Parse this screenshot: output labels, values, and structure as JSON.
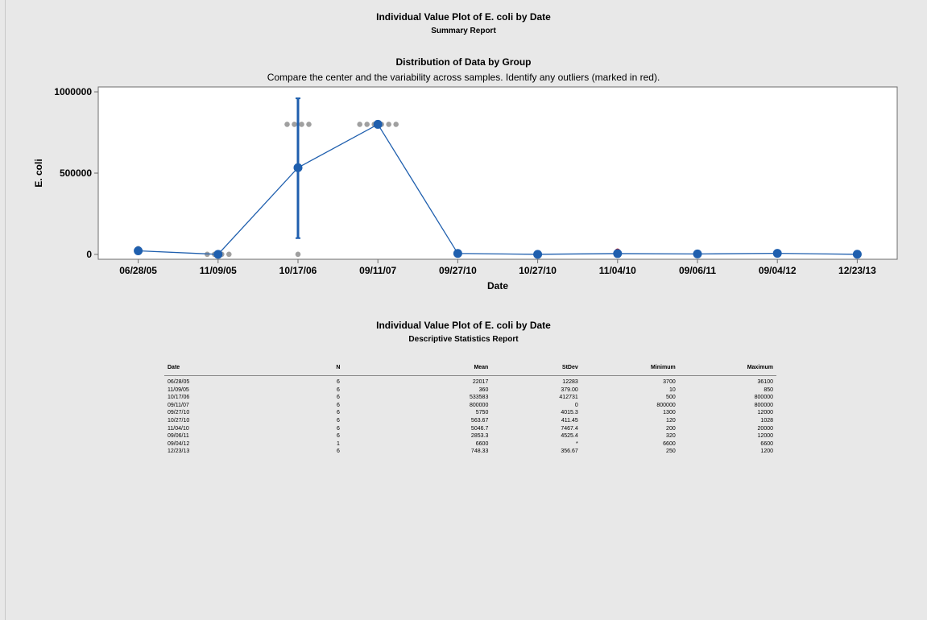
{
  "report": {
    "title": "Individual Value Plot of E. coli by Date",
    "subtitle": "Summary Report",
    "section_title": "Distribution of Data by Group",
    "section_description": "Compare the center and the variability across samples. Identify any outliers (marked in red)."
  },
  "chart_data": {
    "type": "scatter",
    "xlabel": "Date",
    "ylabel": "E. coli",
    "categories": [
      "06/28/05",
      "11/09/05",
      "10/17/06",
      "09/11/07",
      "09/27/10",
      "10/27/10",
      "11/04/10",
      "09/06/11",
      "09/04/12",
      "12/23/13"
    ],
    "ylim": [
      -30000,
      1030000
    ],
    "yticks": [
      0,
      500000,
      1000000
    ],
    "ytick_labels": [
      "0",
      "500000",
      "1000000"
    ],
    "means": [
      22017,
      360,
      533583,
      800000,
      5750,
      563.67,
      5046.7,
      2853.3,
      6600,
      748.33
    ],
    "individual_points": [
      {
        "category": "06/28/05",
        "values": [
          36100
        ]
      },
      {
        "category": "11/09/05",
        "values": [
          850,
          850,
          850,
          850
        ]
      },
      {
        "category": "10/17/06",
        "values": [
          800000,
          800000,
          800000,
          800000,
          500
        ]
      },
      {
        "category": "09/11/07",
        "values": [
          800000,
          800000,
          800000,
          800000,
          800000,
          800000
        ]
      }
    ],
    "outliers": [
      {
        "category": "11/04/10",
        "value": 20000
      }
    ],
    "error_bar": {
      "category": "10/17/06",
      "low": 100000,
      "high": 960000
    },
    "colors": {
      "series": "#1f5fae",
      "points": "#a0a0a0",
      "outlier": "#c00000",
      "plot_bg": "#ffffff"
    },
    "grid": false
  },
  "stats_report": {
    "title": "Individual Value Plot of E. coli by Date",
    "subtitle": "Descriptive Statistics Report",
    "headers": [
      "Date",
      "N",
      "Mean",
      "StDev",
      "Minimum",
      "Maximum"
    ],
    "rows": [
      [
        "06/28/05",
        "6",
        "22017",
        "12283",
        "3700",
        "36100"
      ],
      [
        "11/09/05",
        "6",
        "360",
        "379.00",
        "10",
        "850"
      ],
      [
        "10/17/06",
        "6",
        "533583",
        "412731",
        "500",
        "800000"
      ],
      [
        "09/11/07",
        "6",
        "800000",
        "0",
        "800000",
        "800000"
      ],
      [
        "09/27/10",
        "6",
        "5750",
        "4015.3",
        "1300",
        "12000"
      ],
      [
        "10/27/10",
        "6",
        "563.67",
        "411.45",
        "120",
        "1028"
      ],
      [
        "11/04/10",
        "6",
        "5046.7",
        "7467.4",
        "200",
        "20000"
      ],
      [
        "09/06/11",
        "6",
        "2853.3",
        "4525.4",
        "320",
        "12000"
      ],
      [
        "09/04/12",
        "1",
        "6600",
        "*",
        "6600",
        "6600"
      ],
      [
        "12/23/13",
        "6",
        "748.33",
        "356.67",
        "250",
        "1200"
      ]
    ]
  }
}
